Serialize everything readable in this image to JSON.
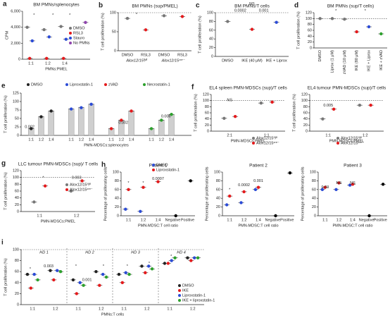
{
  "chart_data": [
    {
      "panel": "a",
      "type": "dot",
      "title": "BM PMNs/splenocytes",
      "ylabel": "CPM",
      "xlabel": "PMNs:PMEL",
      "categories": [
        "1:1",
        "1:2",
        "1:4",
        null
      ],
      "series": [
        {
          "name": "DMSO",
          "color": "#777777",
          "values": [
            4000,
            3700,
            4100,
            null
          ]
        },
        {
          "name": "RSL3",
          "color": "#e41a1c",
          "values": [
            100,
            100,
            100,
            null
          ]
        },
        {
          "name": "Stauro",
          "color": "#2b4bd6",
          "values": [
            2300,
            2800,
            2500,
            null
          ]
        },
        {
          "name": "No PMNs",
          "color": "#8e44ad",
          "values": [
            null,
            null,
            null,
            4600
          ]
        }
      ],
      "ylim": [
        0,
        6000
      ],
      "yticks": [
        0,
        {
          "value": 2000,
          "label": "2,000"
        },
        {
          "value": 4000,
          "label": "4,000"
        },
        {
          "value": 6000,
          "label": "6,000"
        }
      ],
      "annotations": [
        "*",
        "*",
        "*"
      ]
    },
    {
      "panel": "b",
      "type": "dot",
      "title": "BM PMNs (sup/PMEL)",
      "ylabel": "T cell proliferation (%)",
      "categories": [
        "DMSO",
        "RSL3",
        "DMSO",
        "RSL3"
      ],
      "groups": [
        "Alox12/15ᶠˡ/ᶠˡ",
        "Alox12/15ᶜʳᵉ⁻"
      ],
      "series": [
        {
          "colors": [
            "#777777",
            "#e41a1c",
            "#777777",
            "#e41a1c"
          ],
          "values": [
            85,
            55,
            92,
            90
          ]
        }
      ],
      "ylim": [
        0,
        100
      ],
      "yticks": [
        0,
        50,
        100
      ],
      "refline": 100,
      "annotations": [
        "*"
      ]
    },
    {
      "panel": "c",
      "type": "dot",
      "title": "BM PMNs/T cells",
      "ylabel": "T cell proliferation (%)",
      "categories": [
        "DMSO",
        "IKE (40 μM)",
        "IKE + Liprox"
      ],
      "series": [
        {
          "colors": [
            "#777777",
            "#e41a1c",
            "#2b4bd6"
          ],
          "values": [
            80,
            62,
            78
          ]
        }
      ],
      "ylim": [
        0,
        100
      ],
      "yticks": [
        0,
        20,
        40,
        60,
        80,
        100
      ],
      "refline": 100,
      "annotations": [
        "0.0002",
        "0.001",
        "NS"
      ]
    },
    {
      "panel": "d",
      "type": "dot",
      "title": "BM PMNs (sup/T cells)",
      "ylabel": "T cell proliferation (%)",
      "categories": [
        "DMSO",
        "Liprox (1 μM)",
        "zVAD (10 μM)",
        "IKE (80 μM)",
        "IKE + Liprox",
        "IKE + zVAD"
      ],
      "series": [
        {
          "colors": [
            "#777777",
            "#777777",
            "#777777",
            "#e41a1c",
            "#2b4bd6",
            "#2ca02c"
          ],
          "values": [
            100,
            100,
            98,
            55,
            72,
            48
          ]
        }
      ],
      "ylim": [
        0,
        120
      ],
      "yticks": [
        0,
        20,
        40,
        60,
        80,
        100,
        120
      ],
      "refline": 100,
      "annotations": [
        "*",
        "*"
      ]
    },
    {
      "panel": "e",
      "type": "bar",
      "ylabel": "T cell proliferation (%)",
      "xlabel": "PMN-MDSCs:splenocytes",
      "categories": [
        "1:1",
        "1:2",
        "1:4"
      ],
      "series": [
        {
          "name": "DMSO",
          "color": "#222222",
          "values": [
            20,
            55,
            72
          ]
        },
        {
          "name": "Liproxstatin-1",
          "color": "#2b4bd6",
          "values": [
            78,
            82,
            92
          ]
        },
        {
          "name": "zVAD",
          "color": "#e41a1c",
          "values": [
            20,
            45,
            72
          ]
        },
        {
          "name": "Necrostatin-1",
          "color": "#2ca02c",
          "values": [
            20,
            45,
            62
          ]
        }
      ],
      "ylim": [
        0,
        125
      ],
      "yticks": [
        0,
        25,
        50,
        75,
        100,
        125
      ],
      "annotations": [
        "0.002",
        "0.002",
        "0.006"
      ]
    },
    {
      "panel": "f",
      "type": "dot",
      "title": "EL4 spleen PMN-MDSCs (sup)/T cells",
      "ylabel": "T cell proliferation (%)",
      "xlabel": "PMN-MDSCs:PMEL",
      "categories": [
        "2:1",
        "1:1"
      ],
      "series": [
        {
          "name": "Alox12/15ᶠˡ/ᶠˡ",
          "color": "#777777",
          "values": [
            42,
            92
          ]
        },
        {
          "name": "Alox12/15ᶜʳᵉ⁻",
          "color": "#e41a1c",
          "values": [
            48,
            95
          ]
        }
      ],
      "ylim": [
        0,
        120
      ],
      "yticks": [
        0,
        20,
        40,
        60,
        80,
        100,
        120
      ],
      "refline": 100,
      "annotations": [
        "NS"
      ]
    },
    {
      "type": "dot",
      "title": "EL4 tumour PMN-MDSCs (sup)/T cells",
      "ylabel": "T cell proliferation (%)",
      "xlabel": "PMN-MDSCs:PMEL",
      "categories": [
        "1:1",
        "1:2"
      ],
      "series": [
        {
          "name": "Alox12/15ᶠˡ/ᶠˡ",
          "color": "#777777",
          "values": [
            40,
            85
          ]
        },
        {
          "name": "Alox12/15ᶜʳᵉ⁻",
          "color": "#e41a1c",
          "values": [
            72,
            85
          ]
        }
      ],
      "ylim": [
        0,
        120
      ],
      "yticks": [
        0,
        20,
        40,
        60,
        80,
        100,
        120
      ],
      "refline": 100,
      "annotations": [
        "0.005"
      ]
    },
    {
      "panel": "g",
      "type": "dot",
      "title": "LLC tumour PMN-MDSCs (sup)/ T cells",
      "ylabel": "T cell proliferation (%)",
      "xlabel": "PMN-MDSCs:PMEL",
      "categories": [
        "1:1",
        "1:2"
      ],
      "series": [
        {
          "name": "Alox12/15ᶠˡ/ᶠˡ",
          "color": "#777777",
          "values": [
            28,
            60
          ]
        },
        {
          "name": "Alox12/15ᶜʳᵉ⁻",
          "color": "#e41a1c",
          "values": [
            75,
            90
          ]
        }
      ],
      "ylim": [
        0,
        120
      ],
      "yticks": [
        0,
        20,
        40,
        60,
        80,
        100,
        120
      ],
      "refline": 100,
      "annotations": [
        "*",
        "0.003"
      ]
    },
    {
      "panel": "h",
      "type": "dot",
      "title": "Patient 1",
      "ylabel": "Percentage of proliferating cells",
      "xlabel": "PMN-MDSC:T cell ratio",
      "categories": [
        "1:1",
        "1:2",
        "1:4",
        "Negative",
        "Positive"
      ],
      "series": [
        {
          "name": "DMSO",
          "color": "#2b4bd6",
          "values": [
            15,
            10,
            null,
            null,
            null
          ]
        },
        {
          "name": "Liproxstatin-1",
          "color": "#e41a1c",
          "values": [
            60,
            65,
            78,
            null,
            null
          ]
        },
        {
          "color": "#000000",
          "values": [
            null,
            null,
            null,
            0,
            80
          ]
        }
      ],
      "ylim": [
        0,
        100
      ],
      "yticks": [
        0,
        20,
        40,
        60,
        80,
        100
      ],
      "annotations": [
        "*",
        "*",
        "0.0007"
      ]
    },
    {
      "type": "dot",
      "title": "Patient 2",
      "ylabel": "Percentage of proliferating cells",
      "xlabel": "PMN-MDSC:T cell ratio",
      "categories": [
        "1:1",
        "1:2",
        "1:4",
        "Negative",
        "Positive"
      ],
      "series": [
        {
          "color": "#2b4bd6",
          "values": [
            25,
            30,
            60,
            null,
            null
          ]
        },
        {
          "color": "#e41a1c",
          "values": [
            45,
            55,
            65,
            null,
            null
          ]
        },
        {
          "color": "#000000",
          "values": [
            null,
            null,
            null,
            0,
            98
          ]
        }
      ],
      "ylim": [
        0,
        100
      ],
      "yticks": [
        0,
        20,
        40,
        60,
        80,
        100
      ],
      "annotations": [
        "*",
        "0.0002",
        "0.001"
      ]
    },
    {
      "type": "dot",
      "title": "Patient 3",
      "ylabel": "Percentage of proliferating cells",
      "xlabel": "PMN-MDSC:T cell ratio",
      "categories": [
        "1:1",
        "1:2",
        "1:4",
        "Negative",
        "Positive"
      ],
      "series": [
        {
          "color": "#2b4bd6",
          "values": [
            60,
            60,
            70,
            null,
            null
          ]
        },
        {
          "color": "#e41a1c",
          "values": [
            65,
            75,
            72,
            null,
            null
          ]
        },
        {
          "color": "#000000",
          "values": [
            null,
            null,
            null,
            0,
            72
          ]
        }
      ],
      "ylim": [
        0,
        100
      ],
      "yticks": [
        0,
        20,
        40,
        60,
        80,
        100
      ],
      "annotations": [
        "0.03",
        "NS",
        "NS"
      ]
    },
    {
      "panel": "i",
      "type": "dot",
      "ylabel": "T cell proliferation (%)",
      "xlabel": "PMNs:T cells",
      "categories": [
        "1:1",
        "1:2",
        "1:1",
        "1:2",
        "1:1",
        "1:2",
        "1:1",
        "1:2"
      ],
      "groups": [
        "HD 1",
        "HD 2",
        "HD 3",
        "HD 4"
      ],
      "series": [
        {
          "name": "DMSO",
          "color": "#222222",
          "values": [
            55,
            62,
            45,
            60,
            55,
            70,
            75,
            85
          ]
        },
        {
          "name": "IKE",
          "color": "#e41a1c",
          "values": [
            30,
            45,
            20,
            35,
            40,
            58,
            75,
            80
          ]
        },
        {
          "name": "Liproxstatin-1",
          "color": "#2b4bd6",
          "values": [
            55,
            62,
            40,
            55,
            58,
            70,
            80,
            85
          ]
        },
        {
          "name": "IKE + liproxstatin-1",
          "color": "#2ca02c",
          "values": [
            45,
            60,
            35,
            50,
            55,
            65,
            85,
            85
          ]
        }
      ],
      "ylim": [
        0,
        100
      ],
      "yticks": [
        0,
        20,
        40,
        60,
        80,
        100
      ],
      "refline": 100,
      "annotations": [
        "*",
        "0.003",
        "*",
        "0.001",
        "*",
        "*",
        "*",
        "*"
      ]
    }
  ]
}
